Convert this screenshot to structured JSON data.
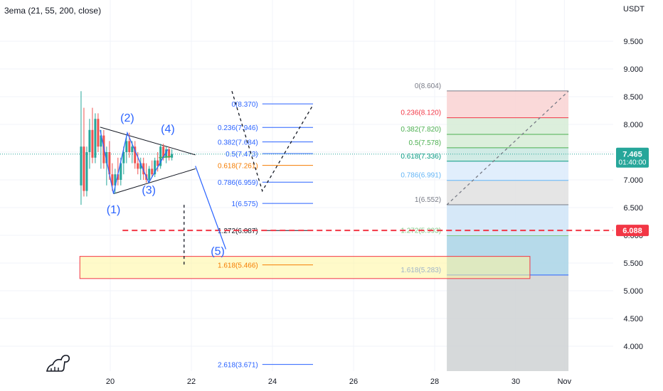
{
  "legend": "3ema (21, 55, 200, close)",
  "unit": "USDT",
  "colors": {
    "up": "#26a69a",
    "down": "#ef5350",
    "accent": "#2962ff",
    "alert": "#f23645"
  },
  "chart_data": {
    "type": "candlestick",
    "xlim": [
      19.3,
      31.7
    ],
    "ylim": [
      3.5,
      10.0
    ],
    "y_ticks": [
      "4.000",
      "4.500",
      "5.000",
      "5.500",
      "6.000",
      "6.500",
      "7.000",
      "7.500",
      "8.000",
      "8.500",
      "9.000",
      "9.500"
    ],
    "x_ticks": [
      {
        "x": 20,
        "label": "20"
      },
      {
        "x": 22,
        "label": "22"
      },
      {
        "x": 24,
        "label": "24"
      },
      {
        "x": 26,
        "label": "26"
      },
      {
        "x": 28,
        "label": "28"
      },
      {
        "x": 30,
        "label": "30"
      },
      {
        "x": 31.2,
        "label": "Nov"
      }
    ],
    "current_price": {
      "value": 7.465,
      "label": "7.465",
      "countdown": "01:40:00"
    },
    "alert_line": {
      "value": 6.088,
      "label": "6.088"
    },
    "candles": [
      {
        "x": 19.28,
        "o": 6.9,
        "h": 8.6,
        "l": 6.55,
        "c": 7.6
      },
      {
        "x": 19.35,
        "o": 7.6,
        "h": 8.3,
        "l": 6.7,
        "c": 6.8
      },
      {
        "x": 19.42,
        "o": 6.8,
        "h": 7.6,
        "l": 6.7,
        "c": 7.5
      },
      {
        "x": 19.49,
        "o": 7.5,
        "h": 8.1,
        "l": 7.2,
        "c": 7.9
      },
      {
        "x": 19.56,
        "o": 7.9,
        "h": 8.3,
        "l": 7.3,
        "c": 7.4
      },
      {
        "x": 19.63,
        "o": 7.4,
        "h": 8.2,
        "l": 7.3,
        "c": 8.1
      },
      {
        "x": 19.7,
        "o": 8.1,
        "h": 8.2,
        "l": 7.5,
        "c": 7.6
      },
      {
        "x": 19.77,
        "o": 7.6,
        "h": 7.9,
        "l": 7.2,
        "c": 7.8
      },
      {
        "x": 19.84,
        "o": 7.8,
        "h": 7.9,
        "l": 7.2,
        "c": 7.3
      },
      {
        "x": 19.91,
        "o": 7.3,
        "h": 7.6,
        "l": 6.9,
        "c": 7.5
      },
      {
        "x": 19.98,
        "o": 7.5,
        "h": 7.7,
        "l": 7.0,
        "c": 7.1
      },
      {
        "x": 20.05,
        "o": 7.1,
        "h": 7.3,
        "l": 6.8,
        "c": 6.9
      },
      {
        "x": 20.12,
        "o": 6.9,
        "h": 7.2,
        "l": 6.75,
        "c": 7.1
      },
      {
        "x": 20.19,
        "o": 7.1,
        "h": 7.4,
        "l": 6.9,
        "c": 7.0
      },
      {
        "x": 20.26,
        "o": 7.0,
        "h": 7.4,
        "l": 6.9,
        "c": 7.3
      },
      {
        "x": 20.33,
        "o": 7.3,
        "h": 7.6,
        "l": 7.1,
        "c": 7.5
      },
      {
        "x": 20.4,
        "o": 7.5,
        "h": 7.8,
        "l": 7.3,
        "c": 7.7
      },
      {
        "x": 20.47,
        "o": 7.7,
        "h": 7.85,
        "l": 7.4,
        "c": 7.5
      },
      {
        "x": 20.54,
        "o": 7.5,
        "h": 7.7,
        "l": 7.3,
        "c": 7.6
      },
      {
        "x": 20.61,
        "o": 7.6,
        "h": 7.7,
        "l": 7.2,
        "c": 7.3
      },
      {
        "x": 20.68,
        "o": 7.3,
        "h": 7.5,
        "l": 7.1,
        "c": 7.2
      },
      {
        "x": 20.75,
        "o": 7.2,
        "h": 7.4,
        "l": 7.0,
        "c": 7.3
      },
      {
        "x": 20.82,
        "o": 7.3,
        "h": 7.4,
        "l": 7.0,
        "c": 7.1
      },
      {
        "x": 20.89,
        "o": 7.1,
        "h": 7.3,
        "l": 6.95,
        "c": 7.0
      },
      {
        "x": 20.96,
        "o": 7.0,
        "h": 7.25,
        "l": 6.95,
        "c": 7.2
      },
      {
        "x": 21.03,
        "o": 7.2,
        "h": 7.35,
        "l": 7.05,
        "c": 7.1
      },
      {
        "x": 21.1,
        "o": 7.1,
        "h": 7.4,
        "l": 7.05,
        "c": 7.35
      },
      {
        "x": 21.17,
        "o": 7.35,
        "h": 7.5,
        "l": 7.15,
        "c": 7.25
      },
      {
        "x": 21.24,
        "o": 7.25,
        "h": 7.65,
        "l": 7.2,
        "c": 7.6
      },
      {
        "x": 21.31,
        "o": 7.6,
        "h": 7.65,
        "l": 7.35,
        "c": 7.4
      },
      {
        "x": 21.38,
        "o": 7.4,
        "h": 7.6,
        "l": 7.3,
        "c": 7.55
      },
      {
        "x": 21.45,
        "o": 7.55,
        "h": 7.6,
        "l": 7.35,
        "c": 7.4
      },
      {
        "x": 21.52,
        "o": 7.4,
        "h": 7.55,
        "l": 7.35,
        "c": 7.465
      }
    ],
    "waves": [
      {
        "label": "(1)",
        "x": 20.08,
        "y": 6.4
      },
      {
        "label": "(2)",
        "x": 20.42,
        "y": 8.05
      },
      {
        "label": "(3)",
        "x": 20.95,
        "y": 6.75
      },
      {
        "label": "(4)",
        "x": 21.42,
        "y": 7.85
      },
      {
        "label": "(5)",
        "x": 22.65,
        "y": 5.65
      }
    ],
    "wave_path": [
      [
        19.75,
        7.9
      ],
      [
        20.08,
        6.75
      ],
      [
        20.42,
        7.85
      ],
      [
        20.95,
        6.95
      ],
      [
        21.42,
        7.55
      ]
    ],
    "wave5_projection": [
      [
        22.1,
        7.25
      ],
      [
        22.85,
        5.75
      ]
    ],
    "triangle_upper": [
      [
        19.75,
        7.95
      ],
      [
        22.1,
        7.45
      ]
    ],
    "triangle_lower": [
      [
        20.08,
        6.75
      ],
      [
        22.1,
        7.2
      ]
    ],
    "ema_line": [
      [
        21.2,
        7.4
      ],
      [
        21.5,
        7.42
      ]
    ],
    "fib_mid": {
      "x_start": 23.75,
      "x_end": 25.0,
      "levels": [
        {
          "label": "0(8.370)",
          "value": 8.37,
          "color": "#2962ff"
        },
        {
          "label": "0.236(7.946)",
          "value": 7.946,
          "color": "#2962ff"
        },
        {
          "label": "0.382(7.684)",
          "value": 7.684,
          "color": "#2962ff"
        },
        {
          "label": "0.5(7.473)",
          "value": 7.473,
          "color": "#2962ff"
        },
        {
          "label": "0.618(7.261)",
          "value": 7.261,
          "color": "#f57c00"
        },
        {
          "label": "0.786(6.959)",
          "value": 6.959,
          "color": "#2962ff"
        },
        {
          "label": "1(6.575)",
          "value": 6.575,
          "color": "#2962ff"
        },
        {
          "label": "1.272(6.087)",
          "value": 6.087,
          "color": "#131722"
        },
        {
          "label": "1.618(5.466)",
          "value": 5.466,
          "color": "#f57c00"
        },
        {
          "label": "2.618(3.671)",
          "value": 3.671,
          "color": "#2962ff"
        }
      ]
    },
    "fib_right": {
      "x_start": 28.3,
      "x_end": 31.3,
      "levels": [
        {
          "label": "0(8.604)",
          "value": 8.604,
          "color": "#787b86"
        },
        {
          "label": "0.236(8.120)",
          "value": 8.12,
          "color": "#f23645"
        },
        {
          "label": "0.382(7.820)",
          "value": 7.82,
          "color": "#4caf50"
        },
        {
          "label": "0.5(7.578)",
          "value": 7.578,
          "color": "#4caf50"
        },
        {
          "label": "0.618(7.336)",
          "value": 7.336,
          "color": "#089981"
        },
        {
          "label": "0.786(6.991)",
          "value": 6.991,
          "color": "#64b5f6"
        },
        {
          "label": "1(6.552)",
          "value": 6.552,
          "color": "#787b86"
        },
        {
          "label": "1.272(5.993)",
          "value": 5.993,
          "color": "#81c784"
        },
        {
          "label": "1.618(5.283)",
          "value": 5.283,
          "color": "#2962ff"
        }
      ],
      "bands": [
        {
          "from": 8.604,
          "to": 8.12,
          "color": "#f9d2d2"
        },
        {
          "from": 8.12,
          "to": 7.82,
          "color": "#d6ecd6"
        },
        {
          "from": 7.82,
          "to": 7.578,
          "color": "#d6ecd6"
        },
        {
          "from": 7.578,
          "to": 7.336,
          "color": "#c8e8e0"
        },
        {
          "from": 7.336,
          "to": 6.991,
          "color": "#dcebfb"
        },
        {
          "from": 6.991,
          "to": 6.552,
          "color": "#e0e0e0"
        },
        {
          "from": 6.552,
          "to": 5.993,
          "color": "#cfe4f7"
        },
        {
          "from": 5.993,
          "to": 5.283,
          "color": "#a9d4e6"
        },
        {
          "from": 5.283,
          "to": 3.5,
          "color": "#cfd2d4"
        }
      ]
    },
    "target_zone": {
      "x_start": 19.25,
      "x_end": 30.35,
      "y_top": 5.62,
      "y_bottom": 5.22
    },
    "dashed_guides": [
      {
        "points": [
          [
            21.82,
            6.55
          ],
          [
            21.82,
            5.45
          ]
        ]
      },
      {
        "points": [
          [
            23.0,
            8.6
          ],
          [
            23.75,
            6.8
          ],
          [
            25.0,
            8.35
          ]
        ]
      },
      {
        "points": [
          [
            28.3,
            6.55
          ],
          [
            31.3,
            8.6
          ]
        ]
      }
    ]
  }
}
